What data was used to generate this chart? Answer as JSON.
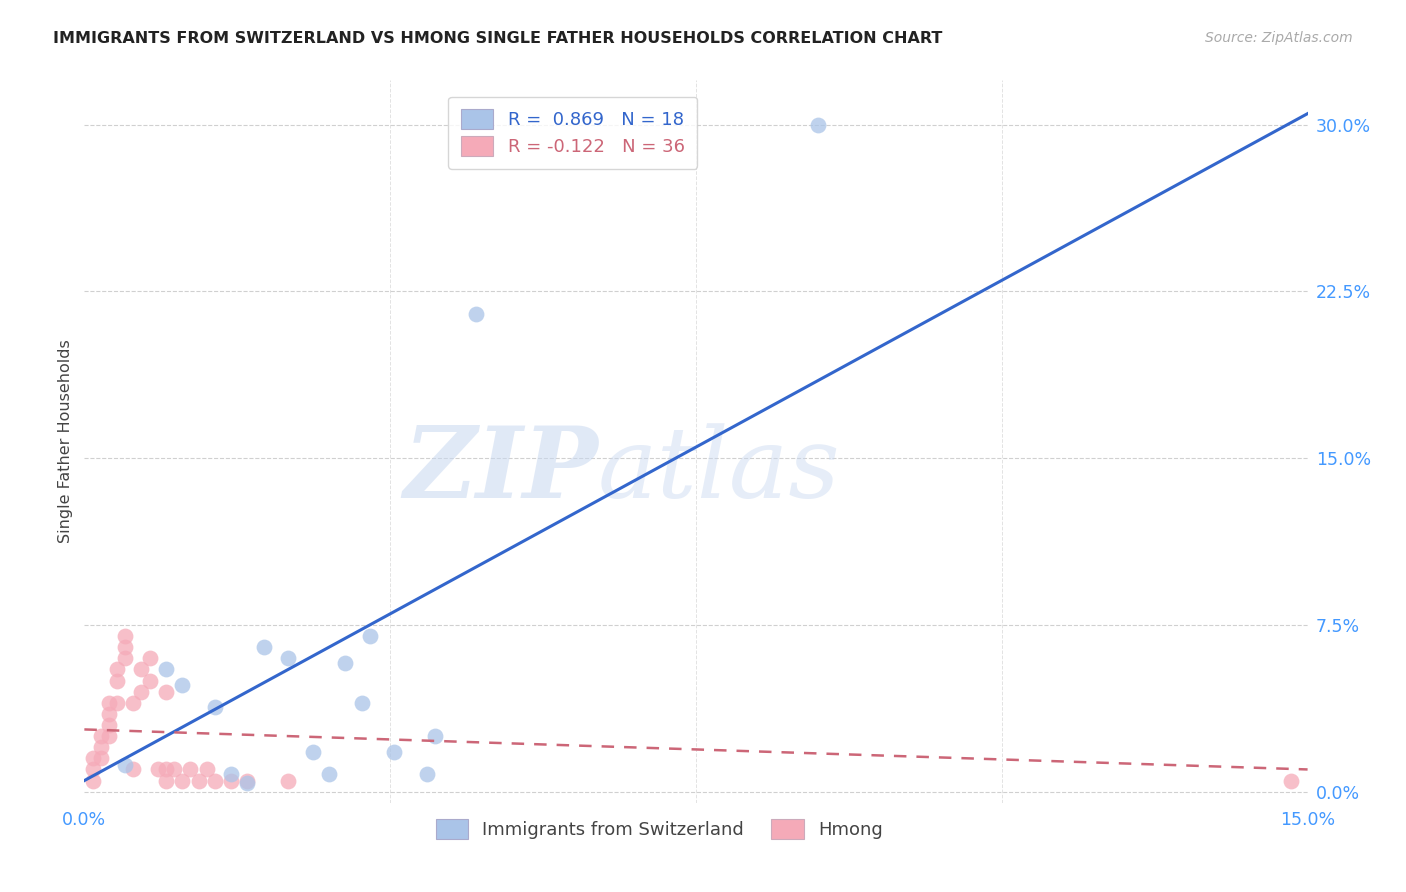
{
  "title": "IMMIGRANTS FROM SWITZERLAND VS HMONG SINGLE FATHER HOUSEHOLDS CORRELATION CHART",
  "source": "Source: ZipAtlas.com",
  "ylabel": "Single Father Households",
  "xlim": [
    0.0,
    0.15
  ],
  "ylim": [
    -0.005,
    0.32
  ],
  "ytick_vals": [
    0.0,
    0.075,
    0.15,
    0.225,
    0.3
  ],
  "ytick_labels": [
    "0.0%",
    "7.5%",
    "15.0%",
    "22.5%",
    "30.0%"
  ],
  "xtick_vals": [
    0.0,
    0.15
  ],
  "xtick_labels": [
    "0.0%",
    "15.0%"
  ],
  "legend_blue_label": "R =  0.869   N = 18",
  "legend_pink_label": "R = -0.122   N = 36",
  "blue_scatter_x": [
    0.005,
    0.01,
    0.012,
    0.016,
    0.018,
    0.02,
    0.022,
    0.025,
    0.028,
    0.03,
    0.032,
    0.034,
    0.038,
    0.042,
    0.048,
    0.09,
    0.043,
    0.035
  ],
  "blue_scatter_y": [
    0.012,
    0.055,
    0.048,
    0.038,
    0.008,
    0.004,
    0.065,
    0.06,
    0.018,
    0.008,
    0.058,
    0.04,
    0.018,
    0.008,
    0.215,
    0.3,
    0.025,
    0.07
  ],
  "blue_trendline_x": [
    0.0,
    0.15
  ],
  "blue_trendline_y": [
    0.005,
    0.305
  ],
  "pink_scatter_x": [
    0.001,
    0.001,
    0.001,
    0.002,
    0.002,
    0.002,
    0.003,
    0.003,
    0.003,
    0.003,
    0.004,
    0.004,
    0.004,
    0.005,
    0.005,
    0.005,
    0.006,
    0.006,
    0.007,
    0.007,
    0.008,
    0.008,
    0.009,
    0.01,
    0.01,
    0.01,
    0.011,
    0.012,
    0.013,
    0.014,
    0.015,
    0.016,
    0.018,
    0.02,
    0.025,
    0.148
  ],
  "pink_scatter_y": [
    0.005,
    0.01,
    0.015,
    0.015,
    0.02,
    0.025,
    0.025,
    0.03,
    0.035,
    0.04,
    0.04,
    0.05,
    0.055,
    0.06,
    0.065,
    0.07,
    0.01,
    0.04,
    0.045,
    0.055,
    0.05,
    0.06,
    0.01,
    0.005,
    0.01,
    0.045,
    0.01,
    0.005,
    0.01,
    0.005,
    0.01,
    0.005,
    0.005,
    0.005,
    0.005,
    0.005
  ],
  "pink_trendline_x": [
    0.0,
    0.15
  ],
  "pink_trendline_y": [
    0.028,
    0.01
  ],
  "watermark_zip": "ZIP",
  "watermark_atlas": "atlas",
  "blue_scatter_color": "#aac4e8",
  "pink_scatter_color": "#f5aab8",
  "blue_line_color": "#3366cc",
  "pink_line_color": "#cc6677",
  "axis_tick_color": "#4499ff",
  "grid_color": "#d0d0d0",
  "title_color": "#222222",
  "source_color": "#aaaaaa",
  "ylabel_color": "#444444",
  "background_color": "#ffffff",
  "legend_border_color": "#cccccc",
  "bottom_legend_labels": [
    "Immigrants from Switzerland",
    "Hmong"
  ],
  "bottom_legend_colors": [
    "#aac4e8",
    "#f5aab8"
  ],
  "scatter_alpha": 0.75,
  "scatter_size": 130,
  "watermark_color_zip": "#c8d8f0",
  "watermark_color_atlas": "#c8d8f0"
}
